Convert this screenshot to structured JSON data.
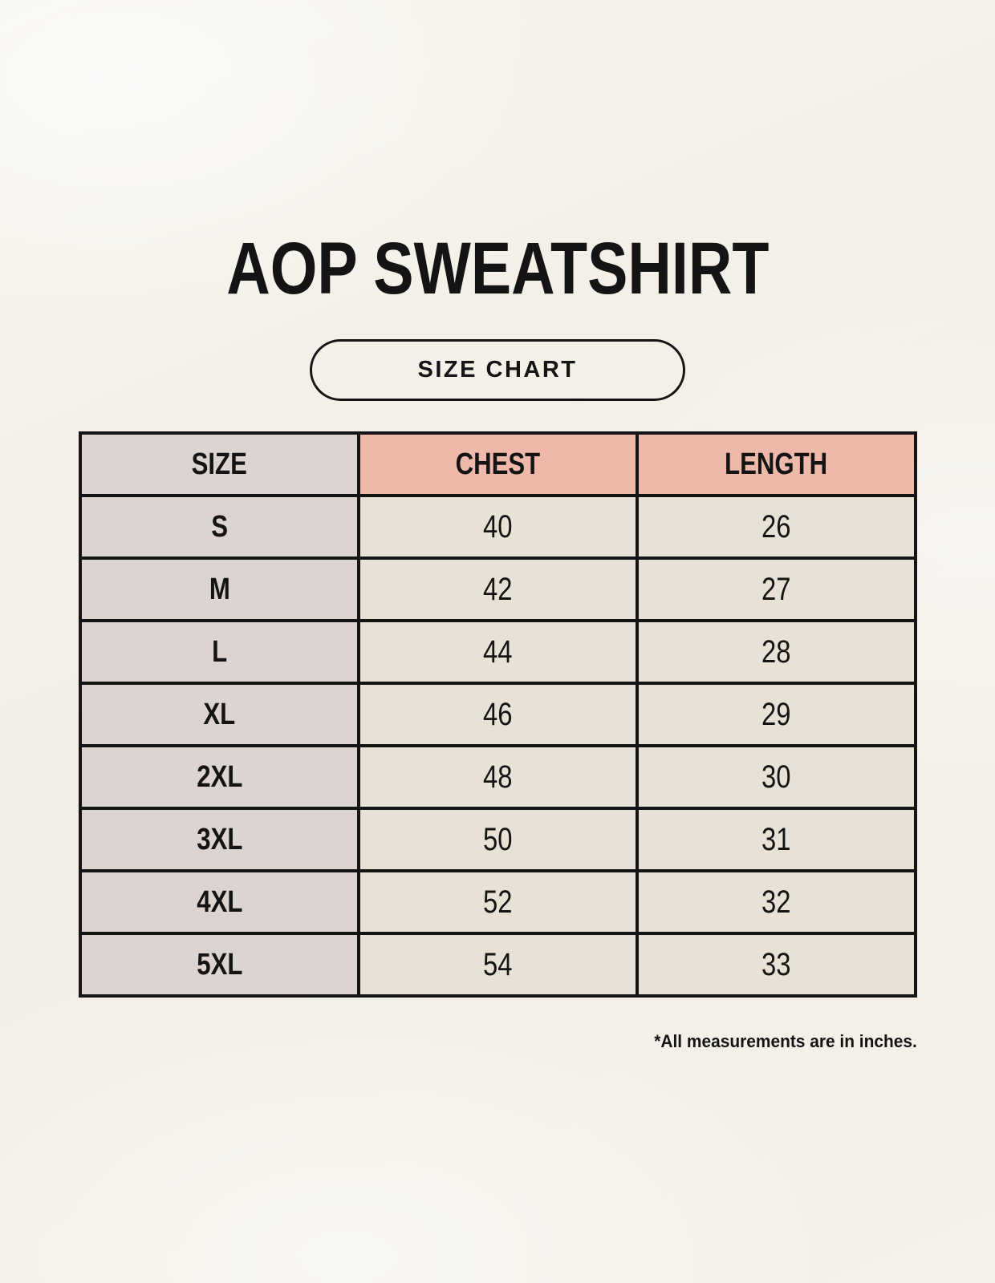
{
  "title": "AOP SWEATSHIRT",
  "badge_label": "SIZE CHART",
  "footnote": "*All measurements are in inches.",
  "chart_data": {
    "type": "table",
    "title": "AOP SWEATSHIRT",
    "subtitle": "SIZE CHART",
    "columns": [
      "SIZE",
      "CHEST",
      "LENGTH"
    ],
    "rows": [
      {
        "size": "S",
        "chest": "40",
        "length": "26"
      },
      {
        "size": "M",
        "chest": "42",
        "length": "27"
      },
      {
        "size": "L",
        "chest": "44",
        "length": "28"
      },
      {
        "size": "XL",
        "chest": "46",
        "length": "29"
      },
      {
        "size": "2XL",
        "chest": "48",
        "length": "30"
      },
      {
        "size": "3XL",
        "chest": "50",
        "length": "31"
      },
      {
        "size": "4XL",
        "chest": "52",
        "length": "32"
      },
      {
        "size": "5XL",
        "chest": "54",
        "length": "33"
      }
    ],
    "note": "*All measurements are in inches."
  },
  "colors": {
    "background": "#f4f0e8",
    "size_col_bg": "#dbd4d0",
    "accent_header_bg": "#eeb9aa",
    "value_cell_bg": "#e8e1d5",
    "border": "#141414",
    "text": "#141414"
  }
}
